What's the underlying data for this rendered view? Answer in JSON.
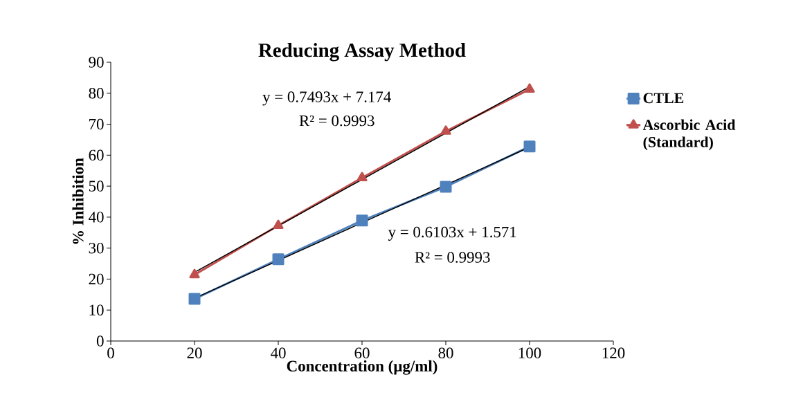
{
  "chart_data": {
    "type": "line",
    "title": "Reducing Assay Method",
    "xlabel": "Concentration (µg/ml)",
    "ylabel": "% Inhibition",
    "xlim": [
      0,
      120
    ],
    "xticks": [
      0,
      20,
      40,
      60,
      80,
      100,
      120
    ],
    "ylim": [
      0,
      90
    ],
    "yticks": [
      0,
      10,
      20,
      30,
      40,
      50,
      60,
      70,
      80,
      90
    ],
    "legend": "right",
    "grid": false,
    "series": [
      {
        "name": "CTLE",
        "color": "#4f81bd",
        "marker": "square",
        "x": [
          20,
          40,
          60,
          80,
          100
        ],
        "values": [
          13.6,
          26.4,
          38.9,
          49.8,
          62.8
        ]
      },
      {
        "name": "Ascorbic Acid (Standard)",
        "color": "#c0504d",
        "marker": "triangle",
        "x": [
          20,
          40,
          60,
          80,
          100
        ],
        "values": [
          21.4,
          37.3,
          52.7,
          67.7,
          81.3
        ]
      },
      {
        "type": "line",
        "color": "#000000",
        "marker": "none",
        "x": [
          20,
          100
        ],
        "values": [
          13.8,
          62.6
        ]
      },
      {
        "type": "line",
        "color": "#000000",
        "marker": "none",
        "x": [
          20,
          100
        ],
        "values": [
          22.2,
          82.1
        ]
      }
    ],
    "annotations": [
      "y = 0.7493x + 7.174",
      "R² = 0.9993",
      "y = 0.6103x + 1.571",
      "R² = 0.9993"
    ]
  }
}
